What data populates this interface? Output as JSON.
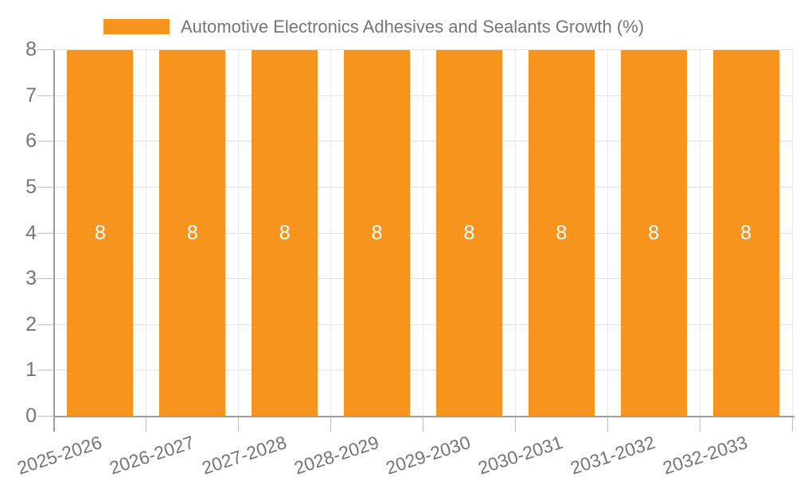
{
  "legend": {
    "label": "Automotive Electronics Adhesives and Sealants Growth (%)",
    "swatch_color": "#F7941E"
  },
  "chart_data": {
    "type": "bar",
    "title": "Automotive Electronics Adhesives and Sealants Growth (%)",
    "categories": [
      "2025-2026",
      "2026-2027",
      "2027-2028",
      "2028-2029",
      "2029-2030",
      "2030-2031",
      "2031-2032",
      "2032-2033"
    ],
    "series": [
      {
        "name": "Automotive Electronics Adhesives and Sealants Growth (%)",
        "values": [
          8,
          8,
          8,
          8,
          8,
          8,
          8,
          8
        ]
      }
    ],
    "bar_value_labels": [
      "8",
      "8",
      "8",
      "8",
      "8",
      "8",
      "8",
      "8"
    ],
    "xlabel": "",
    "ylabel": "",
    "ylim": [
      0,
      8
    ],
    "y_tick_labels": [
      "0",
      "1",
      "2",
      "3",
      "4",
      "5",
      "6",
      "7",
      "8"
    ],
    "grid": true,
    "legend_position": "top",
    "x_label_rotation_deg": -18,
    "colors": {
      "bar": "#F7941E",
      "bar_label_text": "#FFFFFF",
      "axis_text": "#757575",
      "axis_line": "#9E9E9E",
      "tick_line": "#BDBDBD",
      "h_gridline": "#E3E3E3",
      "v_gridline": "#EAEAEA"
    }
  }
}
